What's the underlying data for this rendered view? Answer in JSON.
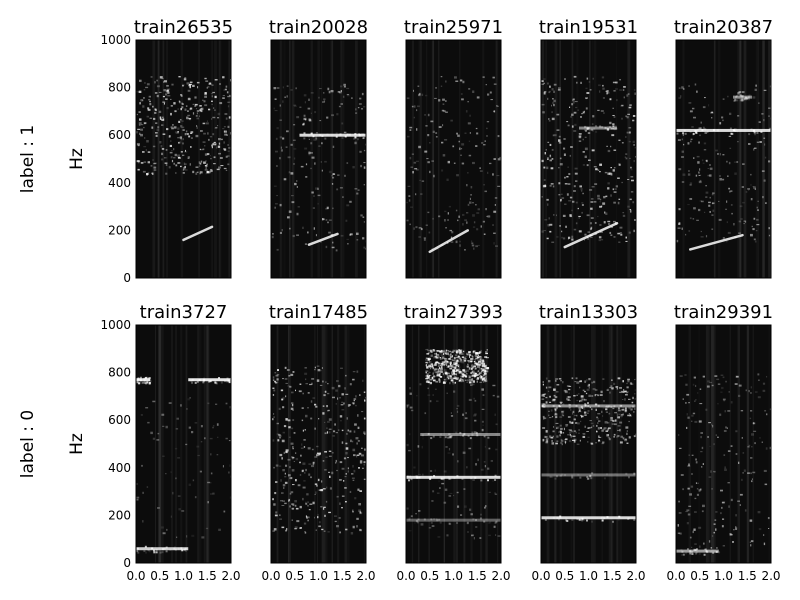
{
  "chart_data": {
    "type": "heatmap",
    "x_ticks": [
      "0.0",
      "0.5",
      "1.0",
      "1.5",
      "2.0"
    ],
    "y_ticks": [
      "0",
      "200",
      "400",
      "600",
      "800",
      "1000"
    ],
    "xlim": [
      0,
      2
    ],
    "ylim": [
      0,
      1000
    ],
    "ylabel": "Hz",
    "colormap": "gray",
    "rows": [
      {
        "row_label": "label : 1",
        "panels": [
          {
            "title": "train26535",
            "lines": [],
            "sweeps": [
              {
                "x0": 1.0,
                "y0": 160,
                "x1": 1.6,
                "y1": 215
              }
            ],
            "blobs": [
              {
                "y0": 440,
                "y1": 850,
                "x0": 0.0,
                "x1": 2.0,
                "w": 0.55
              }
            ]
          },
          {
            "title": "train20028",
            "lines": [
              {
                "y": 600,
                "x0": 0.6,
                "x1": 2.0,
                "w": 0.85
              }
            ],
            "sweeps": [
              {
                "x0": 0.8,
                "y0": 140,
                "x1": 1.4,
                "y1": 185
              }
            ],
            "blobs": [
              {
                "y0": 120,
                "y1": 820,
                "x0": 0.0,
                "x1": 2.0,
                "w": 0.3
              }
            ]
          },
          {
            "title": "train25971",
            "lines": [],
            "sweeps": [
              {
                "x0": 0.5,
                "y0": 110,
                "x1": 1.3,
                "y1": 200
              }
            ],
            "blobs": [
              {
                "y0": 120,
                "y1": 850,
                "x0": 0.0,
                "x1": 2.0,
                "w": 0.3
              }
            ]
          },
          {
            "title": "train19531",
            "lines": [
              {
                "y": 630,
                "x0": 0.8,
                "x1": 1.6,
                "w": 0.5
              }
            ],
            "sweeps": [
              {
                "x0": 0.5,
                "y0": 130,
                "x1": 1.6,
                "y1": 230
              }
            ],
            "blobs": [
              {
                "y0": 150,
                "y1": 850,
                "x0": 0.0,
                "x1": 2.0,
                "w": 0.5
              }
            ]
          },
          {
            "title": "train20387",
            "lines": [
              {
                "y": 620,
                "x0": 0.0,
                "x1": 2.0,
                "w": 0.85
              },
              {
                "y": 760,
                "x0": 1.2,
                "x1": 1.6,
                "w": 0.5
              }
            ],
            "sweeps": [
              {
                "x0": 0.3,
                "y0": 120,
                "x1": 1.4,
                "y1": 180
              }
            ],
            "blobs": [
              {
                "y0": 150,
                "y1": 820,
                "x0": 0.0,
                "x1": 2.0,
                "w": 0.3
              }
            ]
          }
        ]
      },
      {
        "row_label": "label : 0",
        "panels": [
          {
            "title": "train3727",
            "lines": [
              {
                "y": 770,
                "x0": 0.0,
                "x1": 0.3,
                "w": 0.9
              },
              {
                "y": 770,
                "x0": 1.1,
                "x1": 2.0,
                "w": 0.9
              },
              {
                "y": 60,
                "x0": 0.0,
                "x1": 1.1,
                "w": 0.8
              }
            ],
            "sweeps": [],
            "blobs": [
              {
                "y0": 100,
                "y1": 700,
                "x0": 0.0,
                "x1": 2.0,
                "w": 0.12
              }
            ]
          },
          {
            "title": "train17485",
            "lines": [],
            "sweeps": [],
            "blobs": [
              {
                "y0": 130,
                "y1": 830,
                "x0": 0.0,
                "x1": 2.0,
                "w": 0.55
              }
            ]
          },
          {
            "title": "train27393",
            "lines": [
              {
                "y": 360,
                "x0": 0.0,
                "x1": 2.0,
                "w": 0.85
              },
              {
                "y": 540,
                "x0": 0.3,
                "x1": 2.0,
                "w": 0.5
              },
              {
                "y": 180,
                "x0": 0.0,
                "x1": 2.0,
                "w": 0.35
              }
            ],
            "sweeps": [],
            "blobs": [
              {
                "y0": 760,
                "y1": 900,
                "x0": 0.4,
                "x1": 1.7,
                "w": 0.7
              },
              {
                "y0": 100,
                "y1": 760,
                "x0": 0.0,
                "x1": 2.0,
                "w": 0.18
              }
            ]
          },
          {
            "title": "train13303",
            "lines": [
              {
                "y": 190,
                "x0": 0.0,
                "x1": 2.0,
                "w": 0.85
              },
              {
                "y": 370,
                "x0": 0.0,
                "x1": 2.0,
                "w": 0.4
              },
              {
                "y": 660,
                "x0": 0.0,
                "x1": 2.0,
                "w": 0.55
              }
            ],
            "sweeps": [],
            "blobs": [
              {
                "y0": 500,
                "y1": 780,
                "x0": 0.0,
                "x1": 2.0,
                "w": 0.5
              }
            ]
          },
          {
            "title": "train29391",
            "lines": [
              {
                "y": 50,
                "x0": 0.0,
                "x1": 0.9,
                "w": 0.6
              }
            ],
            "sweeps": [],
            "blobs": [
              {
                "y0": 60,
                "y1": 800,
                "x0": 0.0,
                "x1": 2.0,
                "w": 0.3
              }
            ]
          }
        ]
      }
    ]
  }
}
